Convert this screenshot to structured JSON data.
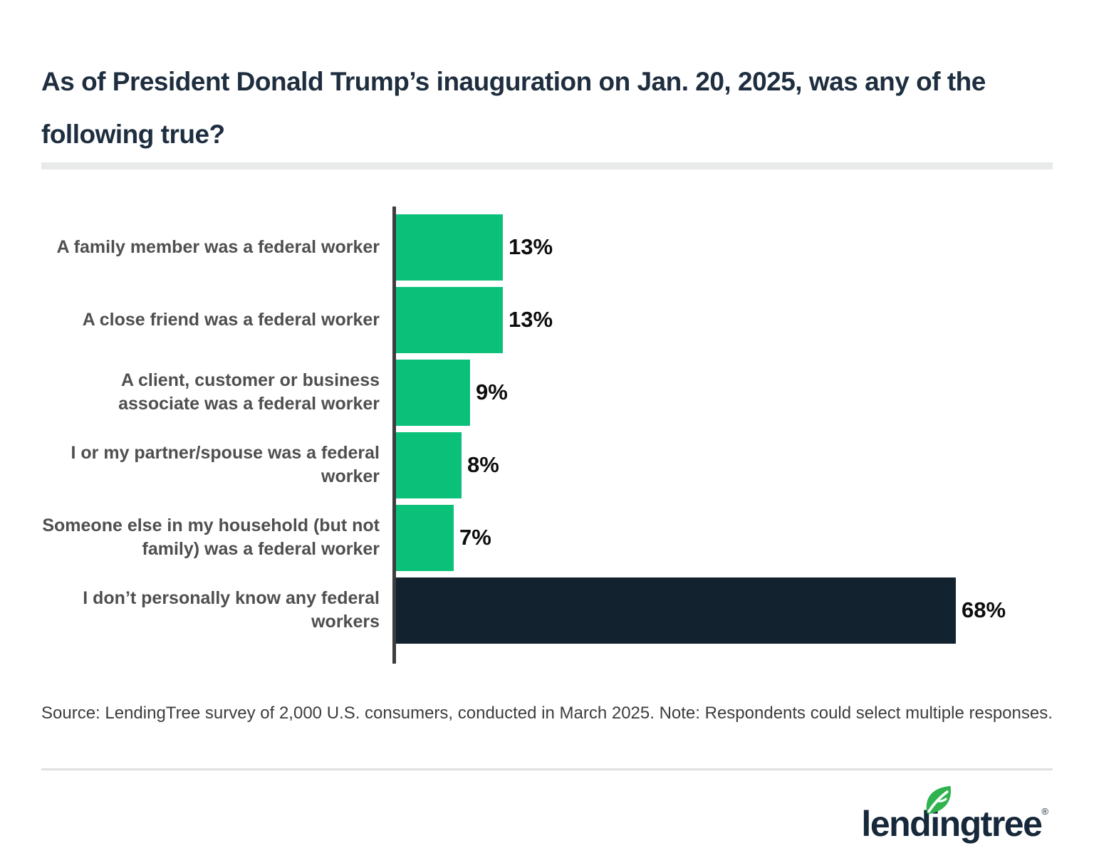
{
  "page": {
    "title": "As of President Donald Trump’s inauguration on Jan. 20, 2025, was any of the following true?",
    "source_note": "Source: LendingTree survey of 2,000 U.S. consumers, conducted in March 2025. Note: Respondents could select multiple responses.",
    "background_color": "#ffffff"
  },
  "chart_data": {
    "type": "bar",
    "orientation": "horizontal",
    "title": "As of President Donald Trump’s inauguration on Jan. 20, 2025, was any of the following true?",
    "categories": [
      "A family member was a federal worker",
      "A close friend was a federal worker",
      "A client, customer or business associate was a federal worker",
      "I or my partner/spouse was a federal worker",
      "Someone else in my household (but not family) was a federal worker",
      "I don’t personally know any federal workers"
    ],
    "values": [
      13,
      13,
      9,
      8,
      7,
      68
    ],
    "data_labels": [
      "13%",
      "13%",
      "9%",
      "8%",
      "7%",
      "68%"
    ],
    "bar_colors": [
      "#0bc17a",
      "#0bc17a",
      "#0bc17a",
      "#0bc17a",
      "#0bc17a",
      "#13222f"
    ],
    "xlim": [
      0,
      68
    ],
    "grid": false,
    "legend": false,
    "xlabel": "",
    "ylabel": "",
    "axis_line_color": "#3d3d3d",
    "category_label_color": "#4f4f4f",
    "value_label_color": "#0d0d0d"
  },
  "branding": {
    "logo_text": "lendingtree",
    "registered_mark": "®",
    "logo_text_color": "#16283a",
    "leaf_color": "#2eb34e"
  },
  "colors": {
    "title": "#1e2e3f",
    "title_divider": "#e8eaea",
    "footer_rule": "#e0e0e0",
    "green": "#0bc17a",
    "navy": "#13222f"
  }
}
